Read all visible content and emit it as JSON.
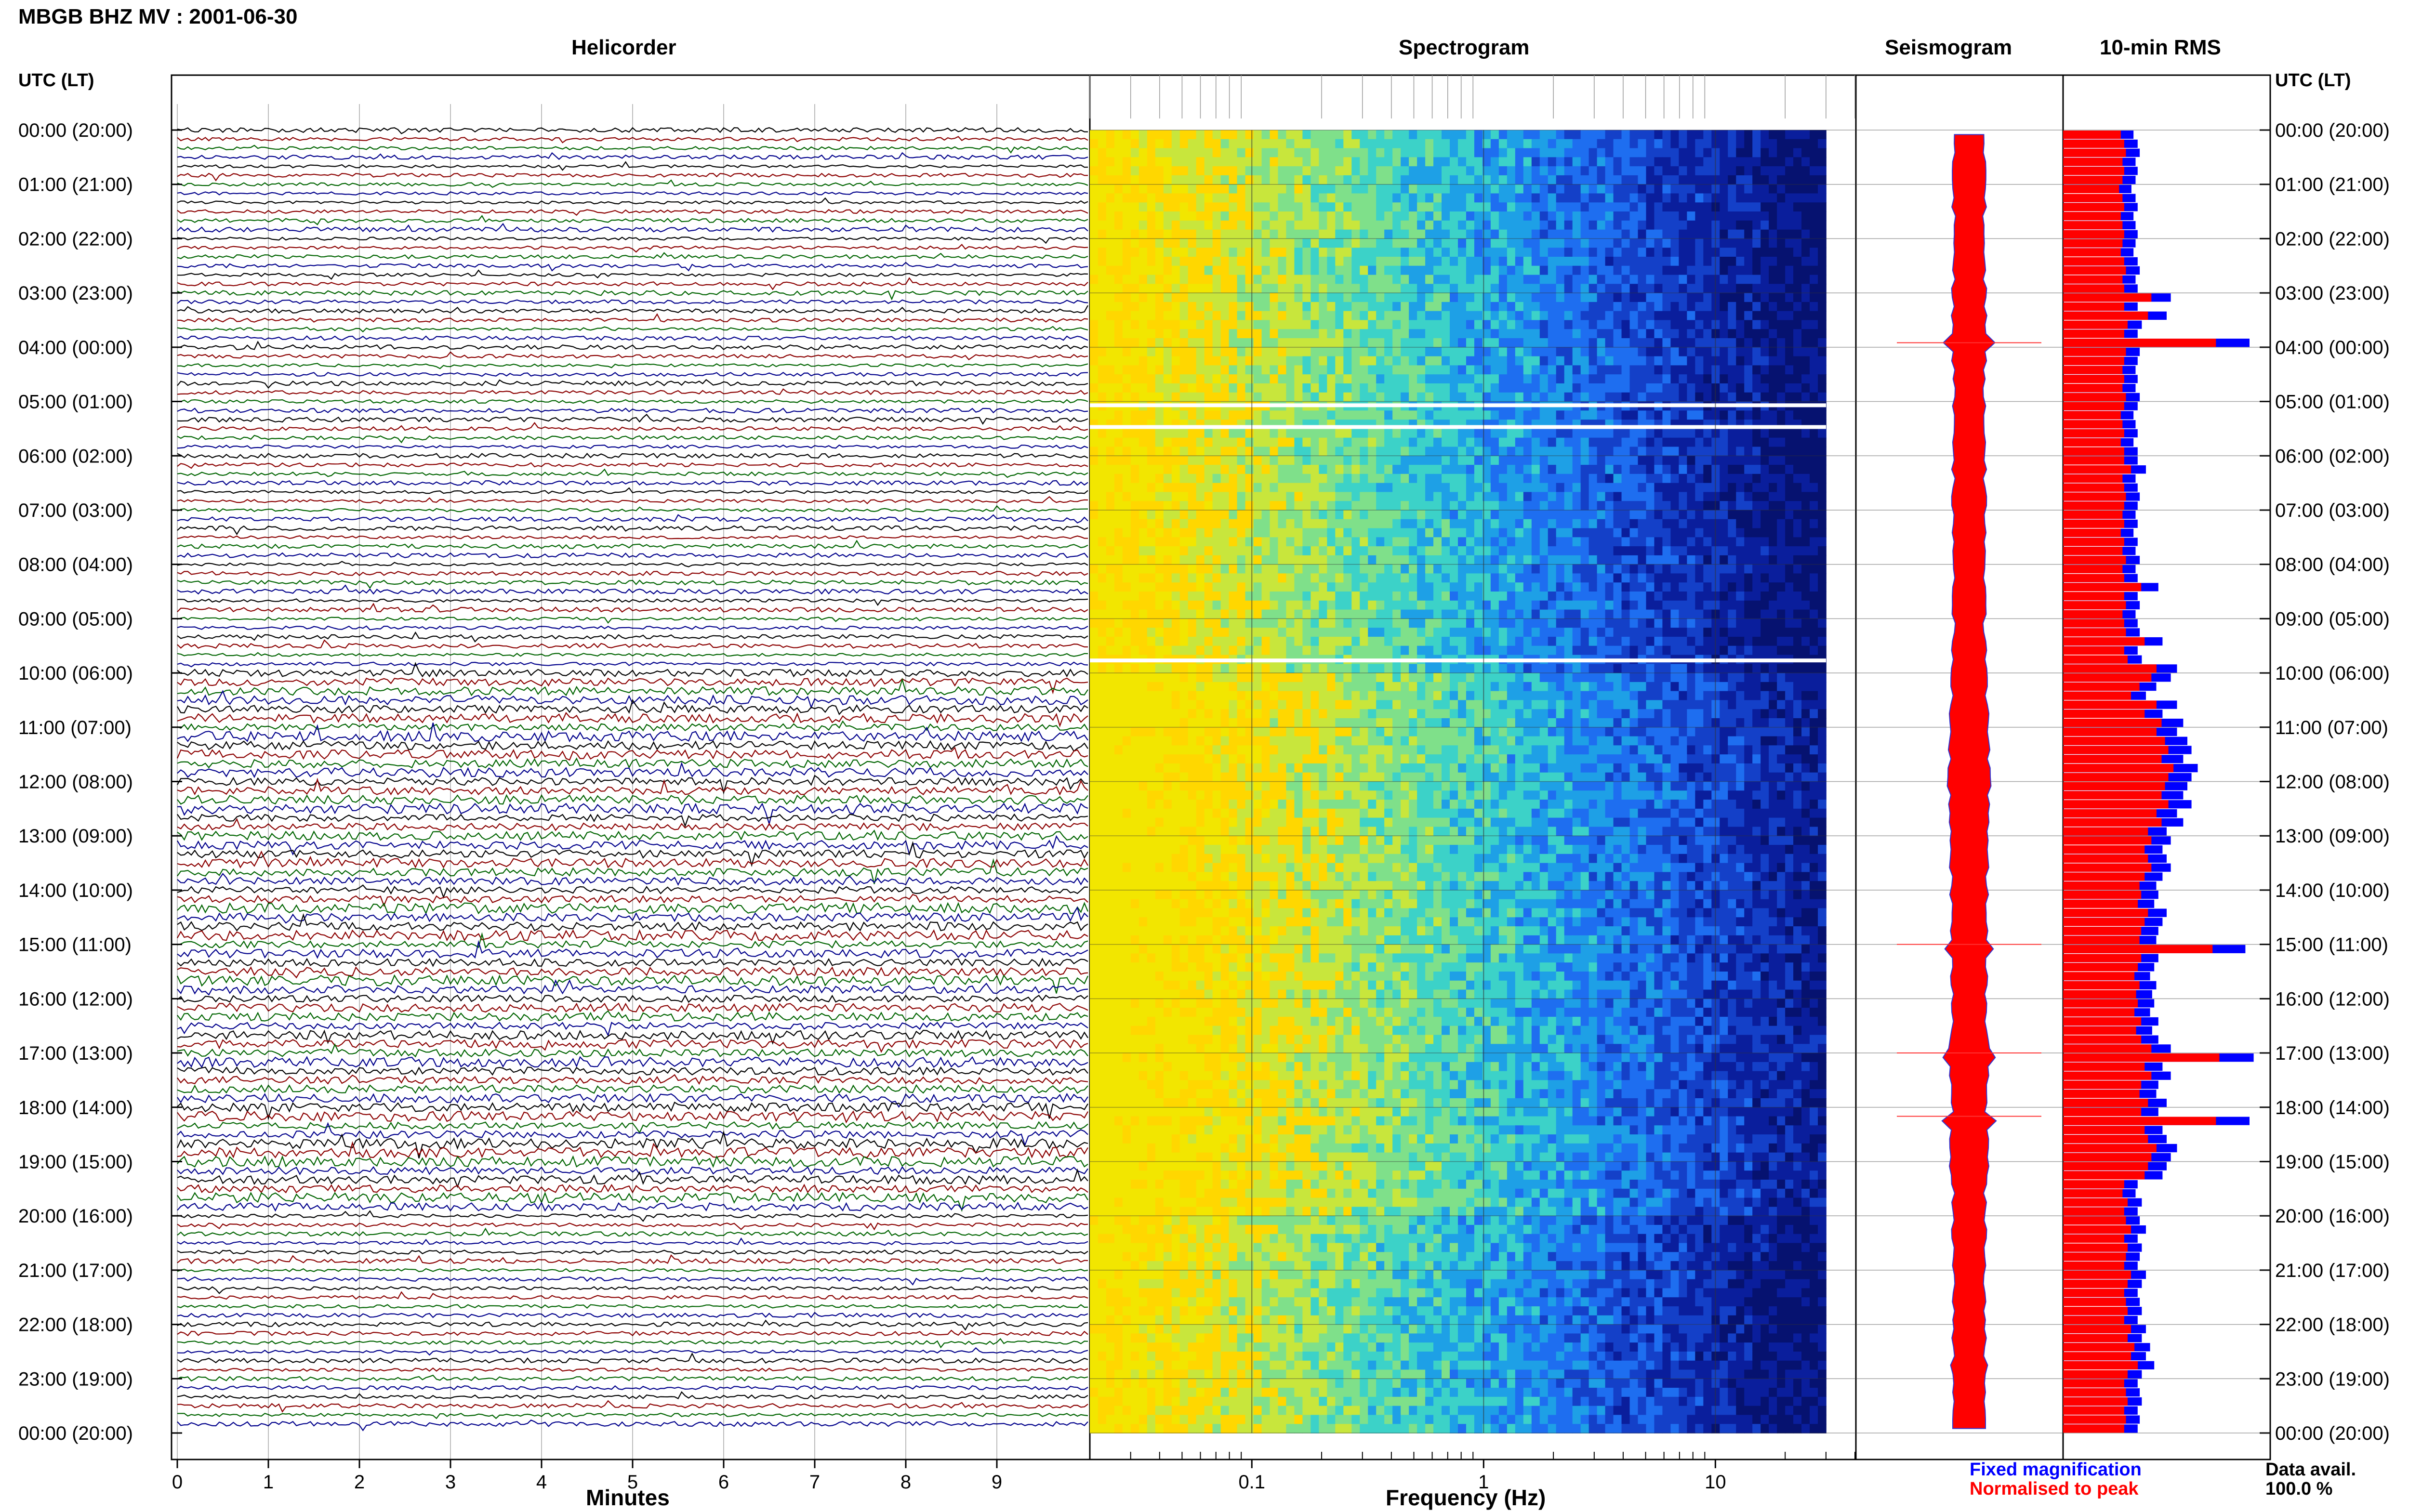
{
  "header": {
    "station_date": "MBGB BHZ MV : 2001-06-30",
    "utc_lt_label_left": "UTC (LT)",
    "utc_lt_label_right": "UTC (LT)"
  },
  "panels": {
    "helicorder_title": "Helicorder",
    "spectrogram_title": "Spectrogram",
    "seismogram_title": "Seismogram",
    "rms_title": "10-min RMS"
  },
  "axes": {
    "minutes_label": "Minutes",
    "frequency_label": "Frequency (Hz)",
    "minute_ticks": [
      "0",
      "1",
      "2",
      "3",
      "4",
      "5",
      "6",
      "7",
      "8",
      "9"
    ],
    "frequency_ticks": [
      "0.1",
      "1",
      "10"
    ]
  },
  "time_labels": [
    "00:00 (20:00)",
    "01:00 (21:00)",
    "02:00 (22:00)",
    "03:00 (23:00)",
    "04:00 (00:00)",
    "05:00 (01:00)",
    "06:00 (02:00)",
    "07:00 (03:00)",
    "08:00 (04:00)",
    "09:00 (05:00)",
    "10:00 (06:00)",
    "11:00 (07:00)",
    "12:00 (08:00)",
    "13:00 (09:00)",
    "14:00 (10:00)",
    "15:00 (11:00)",
    "16:00 (12:00)",
    "17:00 (13:00)",
    "18:00 (14:00)",
    "19:00 (15:00)",
    "20:00 (16:00)",
    "21:00 (17:00)",
    "22:00 (18:00)",
    "23:00 (19:00)",
    "00:00 (20:00)"
  ],
  "legend": {
    "fixed": "Fixed magnification",
    "normalised": "Normalised to peak",
    "fixed_color": "#0000ff",
    "normalised_color": "#ff0000"
  },
  "data_availability": {
    "label": "Data avail.",
    "value": "100.0 %"
  },
  "colors": {
    "trace_colors": [
      "#000000",
      "#8b0000",
      "#006400",
      "#00008b"
    ],
    "rms_fixed": "#0000ff",
    "rms_normalised": "#ff0000",
    "seismo_fill": "#ff0000",
    "seismo_edge": "#3333cc"
  },
  "chart_data": {
    "type": "bar",
    "title": "10-min RMS",
    "description_series": [
      {
        "name": "Fixed magnification"
      },
      {
        "name": "Normalised to peak"
      }
    ],
    "interval_minutes": 10,
    "intervals_per_day": 144,
    "rms_fixed_relative": [
      0.34,
      0.36,
      0.37,
      0.35,
      0.36,
      0.35,
      0.33,
      0.35,
      0.36,
      0.34,
      0.35,
      0.36,
      0.35,
      0.34,
      0.36,
      0.37,
      0.35,
      0.36,
      0.52,
      0.36,
      0.5,
      0.38,
      0.36,
      0.9,
      0.37,
      0.36,
      0.35,
      0.36,
      0.35,
      0.37,
      0.36,
      0.34,
      0.35,
      0.36,
      0.34,
      0.36,
      0.36,
      0.4,
      0.35,
      0.36,
      0.37,
      0.36,
      0.35,
      0.36,
      0.34,
      0.36,
      0.35,
      0.37,
      0.35,
      0.36,
      0.46,
      0.36,
      0.37,
      0.35,
      0.36,
      0.37,
      0.48,
      0.36,
      0.38,
      0.55,
      0.52,
      0.45,
      0.4,
      0.55,
      0.48,
      0.58,
      0.55,
      0.6,
      0.62,
      0.58,
      0.65,
      0.62,
      0.6,
      0.58,
      0.62,
      0.55,
      0.58,
      0.5,
      0.52,
      0.48,
      0.5,
      0.52,
      0.48,
      0.45,
      0.46,
      0.44,
      0.5,
      0.48,
      0.46,
      0.45,
      0.88,
      0.46,
      0.44,
      0.42,
      0.45,
      0.43,
      0.44,
      0.42,
      0.46,
      0.43,
      0.46,
      0.52,
      0.92,
      0.48,
      0.52,
      0.46,
      0.45,
      0.5,
      0.46,
      0.9,
      0.48,
      0.5,
      0.55,
      0.52,
      0.5,
      0.48,
      0.36,
      0.35,
      0.38,
      0.36,
      0.37,
      0.4,
      0.36,
      0.38,
      0.37,
      0.36,
      0.4,
      0.38,
      0.36,
      0.37,
      0.38,
      0.36,
      0.4,
      0.38,
      0.42,
      0.4,
      0.44,
      0.38,
      0.36,
      0.37,
      0.38,
      0.36,
      0.37,
      0.36
    ]
  }
}
